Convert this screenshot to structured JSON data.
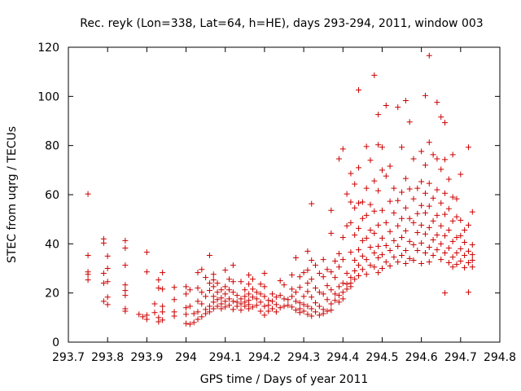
{
  "chart_data": {
    "type": "scatter",
    "title": "Rec. reyk (Lon=338, Lat=64, h=HE), days 293-294, 2011, window 003",
    "xlabel": "GPS time / Days of year 2011",
    "ylabel": "STEC from uqrg / TECUs",
    "xlim": [
      293.7,
      294.8
    ],
    "ylim": [
      0,
      120
    ],
    "xticks": [
      "293.7",
      "293.8",
      "293.9",
      "294",
      "294.1",
      "294.2",
      "294.3",
      "294.4",
      "294.5",
      "294.6",
      "294.7",
      "294.8"
    ],
    "yticks": [
      "0",
      "20",
      "40",
      "60",
      "80",
      "100",
      "120"
    ],
    "grid": false,
    "marker": "plus",
    "color": "#cc0000",
    "points": [
      [
        293.75,
        60.3
      ],
      [
        293.75,
        35.3
      ],
      [
        293.75,
        28.6
      ],
      [
        293.75,
        27.6
      ],
      [
        293.75,
        25.3
      ],
      [
        293.79,
        42.0
      ],
      [
        293.79,
        40.3
      ],
      [
        293.79,
        28.0
      ],
      [
        293.79,
        24.0
      ],
      [
        293.79,
        16.6
      ],
      [
        293.8,
        35.0
      ],
      [
        293.8,
        30.0
      ],
      [
        293.8,
        24.6
      ],
      [
        293.8,
        18.3
      ],
      [
        293.8,
        15.3
      ],
      [
        293.845,
        41.3
      ],
      [
        293.845,
        38.3
      ],
      [
        293.845,
        31.3
      ],
      [
        293.845,
        23.3
      ],
      [
        293.845,
        21.0
      ],
      [
        293.845,
        19.0
      ],
      [
        293.845,
        13.6
      ],
      [
        293.845,
        12.6
      ],
      [
        293.88,
        11.3
      ],
      [
        293.89,
        10.3
      ],
      [
        293.9,
        36.6
      ],
      [
        293.9,
        28.6
      ],
      [
        293.9,
        11.0
      ],
      [
        293.9,
        9.3
      ],
      [
        293.92,
        15.6
      ],
      [
        293.92,
        12.0
      ],
      [
        293.93,
        25.3
      ],
      [
        293.93,
        22.0
      ],
      [
        293.93,
        10.0
      ],
      [
        293.93,
        8.3
      ],
      [
        293.94,
        28.3
      ],
      [
        293.94,
        21.6
      ],
      [
        293.94,
        14.6
      ],
      [
        293.94,
        12.3
      ],
      [
        293.94,
        9.0
      ],
      [
        293.97,
        22.3
      ],
      [
        293.97,
        17.3
      ],
      [
        293.97,
        12.3
      ],
      [
        293.97,
        10.6
      ],
      [
        294.0,
        22.6
      ],
      [
        294.0,
        19.6
      ],
      [
        294.0,
        14.0
      ],
      [
        294.0,
        11.3
      ],
      [
        294.0,
        7.6
      ],
      [
        294.01,
        21.3
      ],
      [
        294.01,
        14.6
      ],
      [
        294.01,
        7.3
      ],
      [
        294.02,
        11.6
      ],
      [
        294.02,
        8.0
      ],
      [
        294.03,
        28.3
      ],
      [
        294.03,
        22.0
      ],
      [
        294.03,
        16.6
      ],
      [
        294.03,
        12.3
      ],
      [
        294.03,
        9.3
      ],
      [
        294.04,
        29.6
      ],
      [
        294.04,
        20.3
      ],
      [
        294.04,
        15.6
      ],
      [
        294.04,
        10.3
      ],
      [
        294.05,
        26.3
      ],
      [
        294.05,
        18.6
      ],
      [
        294.05,
        13.3
      ],
      [
        294.05,
        11.6
      ],
      [
        294.06,
        35.3
      ],
      [
        294.06,
        24.0
      ],
      [
        294.06,
        21.0
      ],
      [
        294.06,
        14.6
      ],
      [
        294.06,
        12.3
      ],
      [
        294.07,
        27.6
      ],
      [
        294.07,
        25.3
      ],
      [
        294.07,
        22.6
      ],
      [
        294.07,
        18.6
      ],
      [
        294.07,
        16.3
      ],
      [
        294.07,
        13.6
      ],
      [
        294.08,
        24.0
      ],
      [
        294.08,
        20.3
      ],
      [
        294.08,
        17.3
      ],
      [
        294.08,
        14.6
      ],
      [
        294.09,
        21.3
      ],
      [
        294.09,
        18.0
      ],
      [
        294.09,
        15.6
      ],
      [
        294.09,
        13.6
      ],
      [
        294.1,
        29.3
      ],
      [
        294.1,
        22.6
      ],
      [
        294.1,
        19.6
      ],
      [
        294.1,
        16.6
      ],
      [
        294.1,
        14.3
      ],
      [
        294.11,
        25.6
      ],
      [
        294.11,
        21.3
      ],
      [
        294.11,
        17.6
      ],
      [
        294.11,
        15.0
      ],
      [
        294.12,
        31.3
      ],
      [
        294.12,
        24.6
      ],
      [
        294.12,
        20.3
      ],
      [
        294.12,
        16.6
      ],
      [
        294.12,
        13.3
      ],
      [
        294.13,
        19.0
      ],
      [
        294.13,
        16.3
      ],
      [
        294.13,
        14.6
      ],
      [
        294.14,
        24.6
      ],
      [
        294.14,
        17.6
      ],
      [
        294.14,
        15.6
      ],
      [
        294.14,
        13.0
      ],
      [
        294.15,
        21.3
      ],
      [
        294.15,
        18.6
      ],
      [
        294.15,
        16.3
      ],
      [
        294.15,
        14.6
      ],
      [
        294.16,
        27.3
      ],
      [
        294.16,
        23.6
      ],
      [
        294.16,
        19.6
      ],
      [
        294.16,
        17.0
      ],
      [
        294.16,
        15.3
      ],
      [
        294.16,
        13.6
      ],
      [
        294.17,
        25.6
      ],
      [
        294.17,
        21.6
      ],
      [
        294.17,
        18.3
      ],
      [
        294.17,
        14.3
      ],
      [
        294.18,
        20.3
      ],
      [
        294.18,
        17.6
      ],
      [
        294.18,
        15.0
      ],
      [
        294.19,
        23.6
      ],
      [
        294.19,
        19.6
      ],
      [
        294.19,
        16.3
      ],
      [
        294.19,
        12.6
      ],
      [
        294.2,
        28.0
      ],
      [
        294.2,
        22.6
      ],
      [
        294.2,
        18.6
      ],
      [
        294.2,
        14.6
      ],
      [
        294.2,
        11.0
      ],
      [
        294.21,
        17.0
      ],
      [
        294.21,
        15.0
      ],
      [
        294.21,
        12.6
      ],
      [
        294.22,
        19.6
      ],
      [
        294.22,
        16.6
      ],
      [
        294.22,
        13.6
      ],
      [
        294.23,
        18.3
      ],
      [
        294.23,
        15.3
      ],
      [
        294.23,
        12.3
      ],
      [
        294.24,
        25.0
      ],
      [
        294.24,
        19.0
      ],
      [
        294.24,
        14.0
      ],
      [
        294.25,
        23.3
      ],
      [
        294.25,
        17.6
      ],
      [
        294.25,
        14.6
      ],
      [
        294.26,
        17.3
      ],
      [
        294.26,
        15.0
      ],
      [
        294.27,
        27.3
      ],
      [
        294.27,
        21.6
      ],
      [
        294.27,
        18.6
      ],
      [
        294.27,
        14.3
      ],
      [
        294.28,
        34.3
      ],
      [
        294.28,
        20.3
      ],
      [
        294.28,
        16.6
      ],
      [
        294.28,
        13.0
      ],
      [
        294.29,
        26.6
      ],
      [
        294.29,
        22.3
      ],
      [
        294.29,
        16.0
      ],
      [
        294.29,
        13.6
      ],
      [
        294.29,
        12.0
      ],
      [
        294.3,
        28.3
      ],
      [
        294.3,
        18.6
      ],
      [
        294.3,
        15.3
      ],
      [
        294.3,
        12.6
      ],
      [
        294.31,
        37.0
      ],
      [
        294.31,
        29.3
      ],
      [
        294.31,
        24.0
      ],
      [
        294.31,
        20.6
      ],
      [
        294.31,
        14.6
      ],
      [
        294.31,
        11.3
      ],
      [
        294.32,
        56.3
      ],
      [
        294.32,
        33.3
      ],
      [
        294.32,
        25.6
      ],
      [
        294.32,
        18.3
      ],
      [
        294.32,
        13.6
      ],
      [
        294.32,
        10.6
      ],
      [
        294.33,
        31.3
      ],
      [
        294.33,
        22.0
      ],
      [
        294.33,
        16.0
      ],
      [
        294.33,
        12.3
      ],
      [
        294.34,
        28.0
      ],
      [
        294.34,
        20.3
      ],
      [
        294.34,
        14.6
      ],
      [
        294.34,
        11.0
      ],
      [
        294.35,
        33.6
      ],
      [
        294.35,
        26.6
      ],
      [
        294.35,
        19.6
      ],
      [
        294.35,
        13.3
      ],
      [
        294.35,
        11.6
      ],
      [
        294.36,
        29.6
      ],
      [
        294.36,
        23.0
      ],
      [
        294.36,
        17.3
      ],
      [
        294.36,
        12.6
      ],
      [
        294.37,
        53.6
      ],
      [
        294.37,
        44.3
      ],
      [
        294.37,
        28.6
      ],
      [
        294.37,
        21.3
      ],
      [
        294.37,
        15.6
      ],
      [
        294.37,
        13.0
      ],
      [
        294.38,
        33.0
      ],
      [
        294.38,
        26.3
      ],
      [
        294.38,
        19.6
      ],
      [
        294.38,
        17.0
      ],
      [
        294.39,
        74.6
      ],
      [
        294.39,
        36.0
      ],
      [
        294.39,
        30.6
      ],
      [
        294.39,
        22.6
      ],
      [
        294.39,
        19.0
      ],
      [
        294.39,
        16.3
      ],
      [
        294.4,
        78.6
      ],
      [
        294.4,
        42.6
      ],
      [
        294.4,
        33.6
      ],
      [
        294.4,
        24.0
      ],
      [
        294.4,
        20.3
      ],
      [
        294.4,
        17.6
      ],
      [
        294.41,
        60.3
      ],
      [
        294.41,
        47.3
      ],
      [
        294.41,
        28.0
      ],
      [
        294.41,
        23.6
      ],
      [
        294.41,
        21.6
      ],
      [
        294.42,
        68.6
      ],
      [
        294.42,
        57.0
      ],
      [
        294.42,
        48.6
      ],
      [
        294.42,
        36.6
      ],
      [
        294.42,
        26.3
      ],
      [
        294.42,
        24.0
      ],
      [
        294.42,
        22.6
      ],
      [
        294.43,
        64.3
      ],
      [
        294.43,
        54.6
      ],
      [
        294.43,
        43.6
      ],
      [
        294.43,
        33.3
      ],
      [
        294.43,
        29.0
      ],
      [
        294.43,
        25.6
      ],
      [
        294.44,
        102.6
      ],
      [
        294.44,
        71.0
      ],
      [
        294.44,
        56.6
      ],
      [
        294.44,
        46.3
      ],
      [
        294.44,
        37.6
      ],
      [
        294.44,
        31.3
      ],
      [
        294.44,
        27.0
      ],
      [
        294.45,
        57.0
      ],
      [
        294.45,
        50.3
      ],
      [
        294.45,
        41.3
      ],
      [
        294.45,
        35.0
      ],
      [
        294.45,
        29.6
      ],
      [
        294.46,
        79.6
      ],
      [
        294.46,
        62.6
      ],
      [
        294.46,
        51.6
      ],
      [
        294.46,
        42.3
      ],
      [
        294.46,
        33.6
      ],
      [
        294.46,
        27.6
      ],
      [
        294.47,
        74.0
      ],
      [
        294.47,
        56.0
      ],
      [
        294.47,
        45.6
      ],
      [
        294.47,
        38.6
      ],
      [
        294.47,
        31.3
      ],
      [
        294.48,
        108.6
      ],
      [
        294.48,
        65.6
      ],
      [
        294.48,
        53.3
      ],
      [
        294.48,
        44.3
      ],
      [
        294.48,
        36.3
      ],
      [
        294.48,
        30.6
      ],
      [
        294.49,
        92.6
      ],
      [
        294.49,
        80.3
      ],
      [
        294.49,
        61.6
      ],
      [
        294.49,
        47.6
      ],
      [
        294.49,
        39.0
      ],
      [
        294.49,
        34.3
      ],
      [
        294.49,
        28.3
      ],
      [
        294.5,
        79.3
      ],
      [
        294.5,
        70.0
      ],
      [
        294.5,
        53.6
      ],
      [
        294.5,
        42.3
      ],
      [
        294.5,
        35.6
      ],
      [
        294.5,
        30.0
      ],
      [
        294.51,
        96.3
      ],
      [
        294.51,
        67.6
      ],
      [
        294.51,
        48.6
      ],
      [
        294.51,
        39.3
      ],
      [
        294.51,
        32.6
      ],
      [
        294.52,
        71.6
      ],
      [
        294.52,
        57.3
      ],
      [
        294.52,
        45.0
      ],
      [
        294.52,
        37.3
      ],
      [
        294.52,
        31.0
      ],
      [
        294.53,
        62.6
      ],
      [
        294.53,
        52.6
      ],
      [
        294.53,
        41.3
      ],
      [
        294.53,
        34.6
      ],
      [
        294.54,
        95.6
      ],
      [
        294.54,
        57.6
      ],
      [
        294.54,
        47.3
      ],
      [
        294.54,
        39.0
      ],
      [
        294.54,
        32.6
      ],
      [
        294.55,
        79.3
      ],
      [
        294.55,
        61.0
      ],
      [
        294.55,
        50.3
      ],
      [
        294.55,
        42.6
      ],
      [
        294.55,
        35.3
      ],
      [
        294.56,
        98.3
      ],
      [
        294.56,
        66.6
      ],
      [
        294.56,
        54.6
      ],
      [
        294.56,
        45.3
      ],
      [
        294.56,
        37.3
      ],
      [
        294.56,
        32.0
      ],
      [
        294.57,
        89.6
      ],
      [
        294.57,
        62.3
      ],
      [
        294.57,
        50.3
      ],
      [
        294.57,
        41.0
      ],
      [
        294.57,
        34.0
      ],
      [
        294.58,
        74.6
      ],
      [
        294.58,
        58.3
      ],
      [
        294.58,
        48.6
      ],
      [
        294.58,
        39.6
      ],
      [
        294.58,
        33.3
      ],
      [
        294.59,
        62.6
      ],
      [
        294.59,
        52.3
      ],
      [
        294.59,
        44.6
      ],
      [
        294.59,
        37.3
      ],
      [
        294.6,
        77.6
      ],
      [
        294.6,
        65.3
      ],
      [
        294.6,
        55.6
      ],
      [
        294.6,
        47.6
      ],
      [
        294.6,
        40.3
      ],
      [
        294.6,
        32.0
      ],
      [
        294.61,
        100.3
      ],
      [
        294.61,
        72.0
      ],
      [
        294.61,
        60.6
      ],
      [
        294.61,
        52.6
      ],
      [
        294.61,
        44.0
      ],
      [
        294.61,
        36.3
      ],
      [
        294.62,
        116.6
      ],
      [
        294.62,
        81.3
      ],
      [
        294.62,
        64.6
      ],
      [
        294.62,
        55.3
      ],
      [
        294.62,
        46.6
      ],
      [
        294.62,
        38.6
      ],
      [
        294.62,
        32.6
      ],
      [
        294.63,
        76.3
      ],
      [
        294.63,
        58.6
      ],
      [
        294.63,
        49.3
      ],
      [
        294.63,
        41.6
      ],
      [
        294.63,
        35.3
      ],
      [
        294.64,
        97.6
      ],
      [
        294.64,
        74.6
      ],
      [
        294.64,
        62.0
      ],
      [
        294.64,
        51.6
      ],
      [
        294.64,
        43.6
      ],
      [
        294.64,
        37.6
      ],
      [
        294.65,
        91.6
      ],
      [
        294.65,
        70.3
      ],
      [
        294.65,
        56.6
      ],
      [
        294.65,
        47.3
      ],
      [
        294.65,
        40.0
      ],
      [
        294.65,
        33.6
      ],
      [
        294.66,
        89.3
      ],
      [
        294.66,
        74.3
      ],
      [
        294.66,
        60.6
      ],
      [
        294.66,
        52.0
      ],
      [
        294.66,
        43.3
      ],
      [
        294.66,
        36.3
      ],
      [
        294.66,
        20.0
      ],
      [
        294.67,
        66.3
      ],
      [
        294.67,
        54.3
      ],
      [
        294.67,
        45.6
      ],
      [
        294.67,
        38.3
      ],
      [
        294.67,
        32.3
      ],
      [
        294.68,
        76.3
      ],
      [
        294.68,
        59.0
      ],
      [
        294.68,
        49.3
      ],
      [
        294.68,
        41.0
      ],
      [
        294.68,
        34.6
      ],
      [
        294.68,
        30.6
      ],
      [
        294.69,
        58.3
      ],
      [
        294.69,
        51.0
      ],
      [
        294.69,
        42.6
      ],
      [
        294.69,
        36.3
      ],
      [
        294.69,
        31.6
      ],
      [
        294.7,
        68.3
      ],
      [
        294.7,
        49.6
      ],
      [
        294.7,
        43.3
      ],
      [
        294.7,
        38.0
      ],
      [
        294.7,
        33.0
      ],
      [
        294.71,
        45.6
      ],
      [
        294.71,
        40.6
      ],
      [
        294.71,
        35.3
      ],
      [
        294.71,
        30.3
      ],
      [
        294.72,
        79.3
      ],
      [
        294.72,
        47.6
      ],
      [
        294.72,
        37.0
      ],
      [
        294.72,
        32.3
      ],
      [
        294.72,
        20.3
      ],
      [
        294.73,
        53.0
      ],
      [
        294.73,
        39.6
      ],
      [
        294.73,
        35.6
      ],
      [
        294.73,
        33.3
      ],
      [
        294.73,
        30.6
      ]
    ]
  }
}
